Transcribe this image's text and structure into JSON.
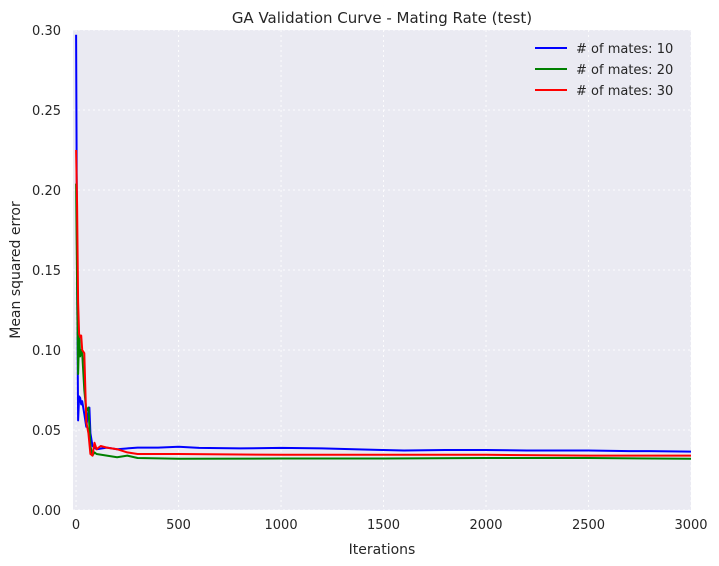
{
  "chart_data": {
    "type": "line",
    "title": "GA Validation Curve - Mating Rate (test)",
    "xlabel": "Iterations",
    "ylabel": "Mean squared error",
    "xlim": [
      -15,
      3000
    ],
    "ylim": [
      0.0,
      0.3
    ],
    "xticks": [
      "0",
      "500",
      "1000",
      "1500",
      "2000",
      "2500",
      "3000"
    ],
    "yticks": [
      "0.00",
      "0.05",
      "0.10",
      "0.15",
      "0.20",
      "0.25",
      "0.30"
    ],
    "grid": true,
    "legend_position": "top-right",
    "series": [
      {
        "name": "# of mates: 10",
        "color": "#0000ff",
        "x": [
          0,
          5,
          10,
          15,
          20,
          25,
          30,
          40,
          50,
          60,
          65,
          70,
          80,
          100,
          150,
          200,
          300,
          400,
          500,
          600,
          800,
          1000,
          1200,
          1400,
          1500,
          1600,
          1800,
          2000,
          2200,
          2500,
          2700,
          2800,
          3000
        ],
        "y": [
          0.297,
          0.15,
          0.056,
          0.071,
          0.07,
          0.066,
          0.068,
          0.06,
          0.052,
          0.062,
          0.064,
          0.048,
          0.04,
          0.038,
          0.039,
          0.038,
          0.039,
          0.039,
          0.0395,
          0.0388,
          0.0385,
          0.0388,
          0.0385,
          0.0378,
          0.0375,
          0.0372,
          0.0375,
          0.0375,
          0.0372,
          0.0372,
          0.0368,
          0.0368,
          0.0365
        ]
      },
      {
        "name": "# of mates: 20",
        "color": "#008000",
        "x": [
          0,
          5,
          10,
          15,
          20,
          25,
          30,
          40,
          50,
          60,
          70,
          80,
          90,
          100,
          150,
          200,
          250,
          300,
          500,
          1000,
          1500,
          2000,
          2500,
          3000
        ],
        "y": [
          0.204,
          0.14,
          0.085,
          0.11,
          0.096,
          0.1,
          0.098,
          0.075,
          0.062,
          0.064,
          0.04,
          0.034,
          0.036,
          0.035,
          0.034,
          0.033,
          0.034,
          0.0325,
          0.032,
          0.0322,
          0.0322,
          0.0325,
          0.0325,
          0.032
        ]
      },
      {
        "name": "# of mates: 30",
        "color": "#ff0000",
        "x": [
          0,
          5,
          10,
          15,
          20,
          25,
          30,
          40,
          50,
          60,
          70,
          80,
          90,
          100,
          120,
          150,
          200,
          250,
          300,
          500,
          1000,
          1500,
          2000,
          2500,
          3000
        ],
        "y": [
          0.225,
          0.19,
          0.13,
          0.11,
          0.108,
          0.109,
          0.1,
          0.098,
          0.055,
          0.048,
          0.035,
          0.034,
          0.042,
          0.038,
          0.04,
          0.039,
          0.038,
          0.036,
          0.035,
          0.035,
          0.0345,
          0.0345,
          0.0345,
          0.034,
          0.034
        ]
      }
    ]
  }
}
